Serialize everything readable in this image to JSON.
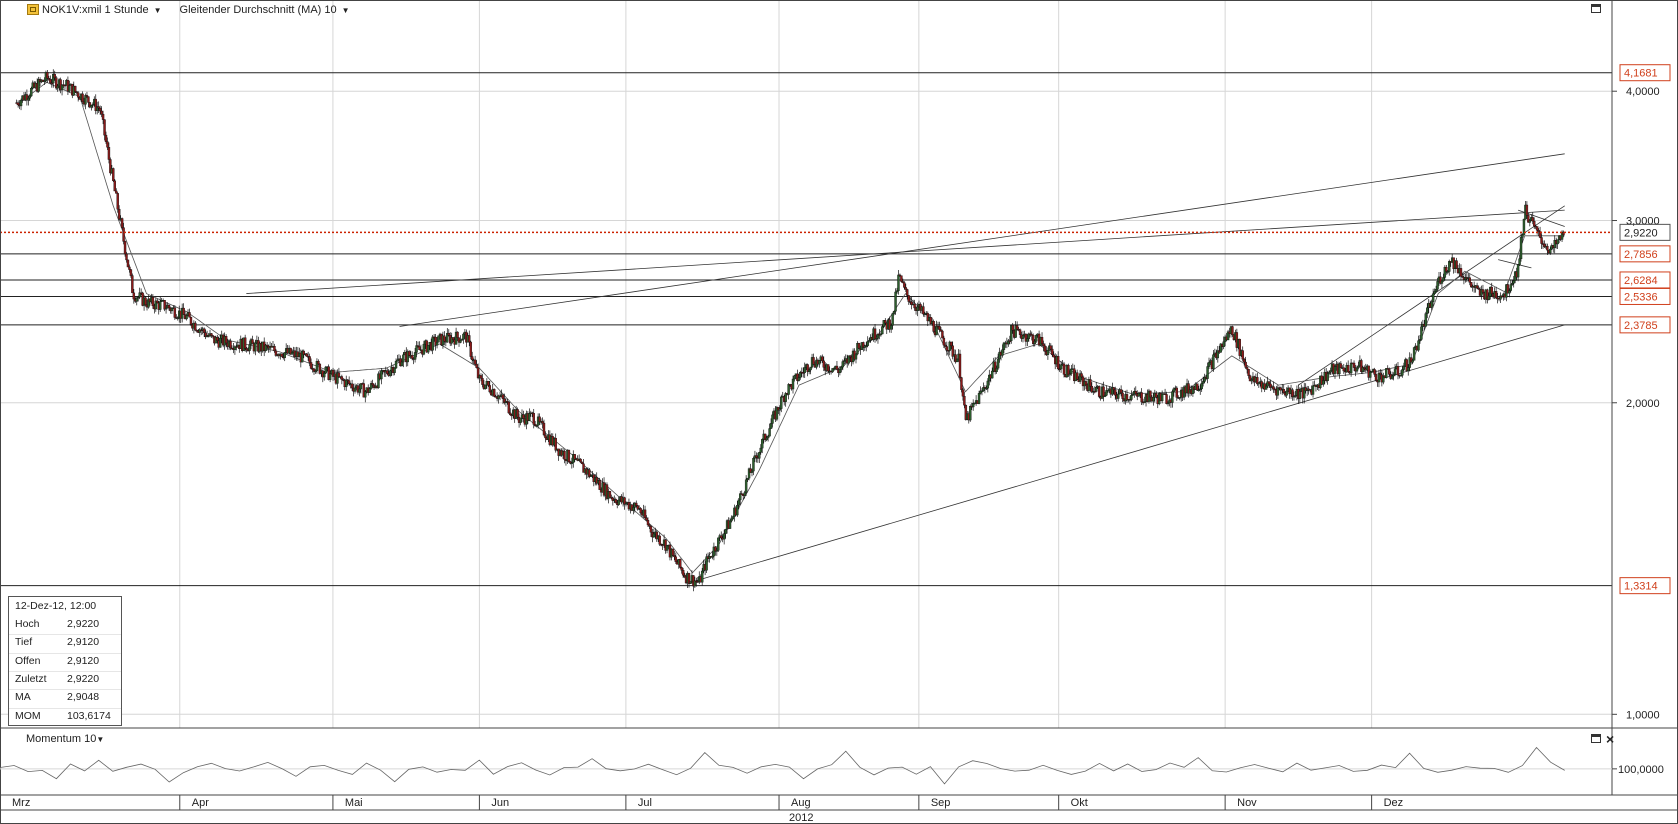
{
  "header": {
    "symbol_label": "NOK1V:xmil 1 Stunde",
    "indicator_label": "Gleitender Durchschnitt (MA) 10"
  },
  "icons": [
    "chart-icon",
    "maximize-icon",
    "close-icon",
    "dropdown-icon"
  ],
  "colors": {
    "price_marker": "#cc2200",
    "candle_up": "#2d5f2d",
    "candle_down": "#8b1a1a",
    "line": "#111111",
    "grid": "#d6d6d6",
    "tag_border": "#d0401c"
  },
  "infobox": {
    "date": "12-Dez-12, 12:00",
    "rows": [
      {
        "key": "Hoch",
        "value": "2,9220"
      },
      {
        "key": "Tief",
        "value": "2,9120"
      },
      {
        "key": "Offen",
        "value": "2,9120"
      },
      {
        "key": "Zuletzt",
        "value": "2,9220"
      },
      {
        "key": "MA",
        "value": "2,9048"
      },
      {
        "key": "MOM",
        "value": "103,6174"
      }
    ]
  },
  "momentum": {
    "label": "Momentum 10",
    "axis_label": "100,0000"
  },
  "chart_data": {
    "type": "candlestick",
    "scale": "log",
    "ylim": [
      0.97,
      4.9
    ],
    "y_ticks": [
      "4,0000",
      "3,0000",
      "2,0000",
      "1,0000"
    ],
    "y_tick_values": [
      4.0,
      3.0,
      2.0,
      1.0
    ],
    "month_labels": [
      "Mrz",
      "Apr",
      "Mai",
      "Jun",
      "Jul",
      "Aug",
      "Sep",
      "Okt",
      "Nov",
      "Dez"
    ],
    "year_label": "2012",
    "current_price_label": "2,9220",
    "current_price": 2.922,
    "horizontal_levels": [
      {
        "label": "4,1681",
        "value": 4.1681
      },
      {
        "label": "2,7856",
        "value": 2.7856
      },
      {
        "label": "2,6284",
        "value": 2.6284
      },
      {
        "label": "2,5336",
        "value": 2.5336
      },
      {
        "label": "2,3785",
        "value": 2.3785
      },
      {
        "label": "1,3314",
        "value": 1.3314
      }
    ],
    "price_path": [
      [
        2.5,
        3.9
      ],
      [
        7,
        4.12
      ],
      [
        10,
        4.05
      ],
      [
        15,
        3.85
      ],
      [
        20,
        2.55
      ],
      [
        22,
        2.5
      ],
      [
        25,
        2.48
      ],
      [
        28,
        2.42
      ],
      [
        32,
        2.3
      ],
      [
        38,
        2.27
      ],
      [
        45,
        2.22
      ],
      [
        50,
        2.12
      ],
      [
        55,
        2.05
      ],
      [
        60,
        2.2
      ],
      [
        66,
        2.3
      ],
      [
        70,
        2.32
      ],
      [
        72,
        2.1
      ],
      [
        74,
        2.06
      ],
      [
        78,
        1.93
      ],
      [
        80,
        1.94
      ],
      [
        84,
        1.8
      ],
      [
        88,
        1.72
      ],
      [
        92,
        1.62
      ],
      [
        96,
        1.58
      ],
      [
        98,
        1.5
      ],
      [
        100,
        1.46
      ],
      [
        101,
        1.42
      ],
      [
        103,
        1.36
      ],
      [
        105,
        1.34
      ],
      [
        106,
        1.4
      ],
      [
        110,
        1.55
      ],
      [
        114,
        1.8
      ],
      [
        118,
        2.05
      ],
      [
        122,
        2.2
      ],
      [
        126,
        2.15
      ],
      [
        130,
        2.3
      ],
      [
        134,
        2.4
      ],
      [
        135,
        2.65
      ],
      [
        136,
        2.55
      ],
      [
        140,
        2.38
      ],
      [
        144,
        2.2
      ],
      [
        145,
        1.92
      ],
      [
        148,
        2.08
      ],
      [
        152,
        2.35
      ],
      [
        156,
        2.3
      ],
      [
        160,
        2.15
      ],
      [
        165,
        2.05
      ],
      [
        170,
        2.03
      ],
      [
        175,
        2.02
      ],
      [
        180,
        2.08
      ],
      [
        185,
        2.36
      ],
      [
        188,
        2.1
      ],
      [
        192,
        2.06
      ],
      [
        196,
        2.04
      ],
      [
        200,
        2.15
      ],
      [
        204,
        2.17
      ],
      [
        207,
        2.12
      ],
      [
        210,
        2.14
      ],
      [
        212,
        2.2
      ],
      [
        214,
        2.4
      ],
      [
        216,
        2.62
      ],
      [
        218,
        2.75
      ],
      [
        222,
        2.55
      ],
      [
        226,
        2.55
      ],
      [
        228,
        2.7
      ],
      [
        229,
        3.08
      ],
      [
        231,
        2.9
      ],
      [
        233,
        2.8
      ],
      [
        235,
        2.92
      ]
    ],
    "ma_path": [
      [
        2.5,
        3.88
      ],
      [
        7,
        4.08
      ],
      [
        12,
        3.95
      ],
      [
        17,
        3.1
      ],
      [
        22,
        2.55
      ],
      [
        28,
        2.45
      ],
      [
        34,
        2.3
      ],
      [
        42,
        2.24
      ],
      [
        50,
        2.14
      ],
      [
        58,
        2.16
      ],
      [
        66,
        2.28
      ],
      [
        72,
        2.16
      ],
      [
        78,
        1.96
      ],
      [
        86,
        1.78
      ],
      [
        94,
        1.6
      ],
      [
        100,
        1.48
      ],
      [
        104,
        1.37
      ],
      [
        108,
        1.46
      ],
      [
        114,
        1.72
      ],
      [
        120,
        2.08
      ],
      [
        126,
        2.16
      ],
      [
        132,
        2.33
      ],
      [
        136,
        2.55
      ],
      [
        140,
        2.4
      ],
      [
        145,
        2.05
      ],
      [
        150,
        2.22
      ],
      [
        156,
        2.28
      ],
      [
        162,
        2.12
      ],
      [
        170,
        2.04
      ],
      [
        178,
        2.05
      ],
      [
        185,
        2.22
      ],
      [
        192,
        2.08
      ],
      [
        200,
        2.12
      ],
      [
        206,
        2.14
      ],
      [
        212,
        2.18
      ],
      [
        216,
        2.55
      ],
      [
        220,
        2.68
      ],
      [
        226,
        2.56
      ],
      [
        229,
        2.9
      ],
      [
        235,
        2.9
      ]
    ],
    "trendlines": [
      {
        "from": [
          103.5,
          1.34
        ],
        "to": [
          235,
          2.3785
        ]
      },
      {
        "from": [
          37,
          2.55
        ],
        "to": [
          235,
          3.07
        ]
      },
      {
        "from": [
          60,
          2.37
        ],
        "to": [
          235,
          3.48
        ]
      },
      {
        "from": [
          195,
          2.08
        ],
        "to": [
          235,
          3.1
        ]
      },
      {
        "from": [
          228,
          3.07
        ],
        "to": [
          235,
          2.96
        ]
      },
      {
        "from": [
          225,
          2.75
        ],
        "to": [
          230,
          2.7
        ]
      }
    ],
    "momentum_values": [
      100,
      101,
      99,
      100,
      98,
      101,
      100,
      102,
      99,
      100,
      101,
      100,
      96,
      99,
      100,
      101,
      100,
      99,
      100,
      102,
      100,
      98,
      100,
      101,
      100,
      99,
      101,
      100,
      97,
      100,
      101,
      99,
      100,
      100,
      102,
      99,
      100,
      101,
      100,
      98,
      100,
      101,
      103,
      100,
      99,
      100,
      101,
      100,
      99,
      100,
      104,
      101,
      100,
      99,
      100,
      101,
      100,
      98,
      100,
      101,
      105,
      100,
      98,
      100,
      101,
      99,
      100,
      96,
      100,
      102,
      101,
      100,
      99,
      100,
      101,
      100,
      99,
      100,
      102,
      100,
      101,
      99,
      100,
      101,
      100,
      103,
      100,
      99,
      100,
      101,
      100,
      99,
      101,
      100,
      100,
      101,
      99,
      100,
      101,
      100,
      104,
      100,
      99,
      100,
      101,
      100,
      100,
      99,
      101,
      106,
      102,
      100
    ]
  }
}
